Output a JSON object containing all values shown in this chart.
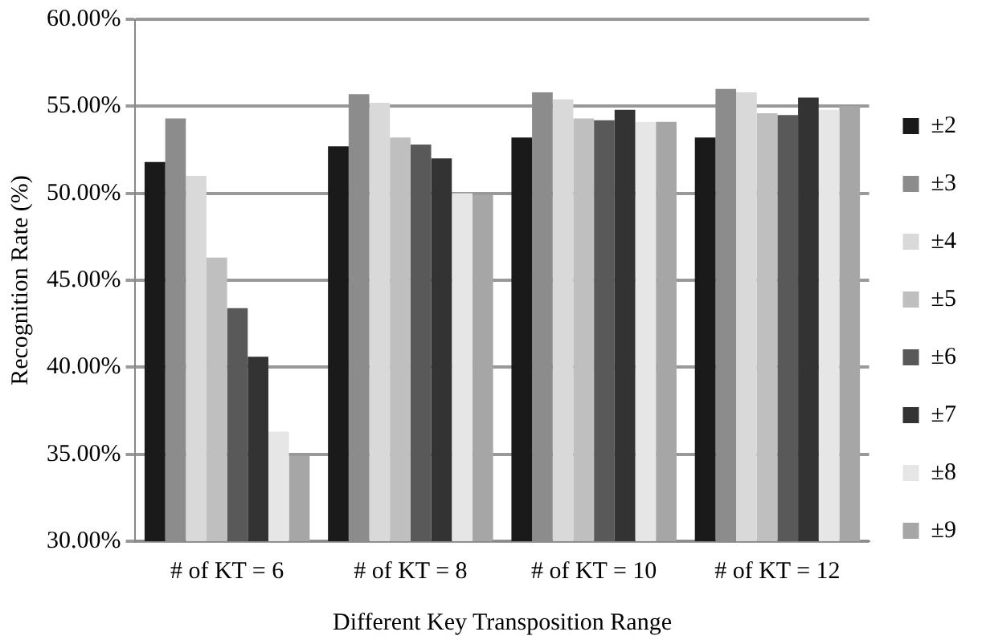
{
  "chart_data": {
    "type": "bar",
    "xlabel": "Different Key Transposition Range",
    "ylabel": "Recognition Rate (%)",
    "categories": [
      "# of KT = 6",
      "# of KT = 8",
      "# of KT = 10",
      "# of KT = 12"
    ],
    "series": [
      {
        "name": "±2",
        "color": "#1a1a1a",
        "values": [
          51.8,
          52.7,
          53.2,
          53.2
        ]
      },
      {
        "name": "±3",
        "color": "#8c8c8c",
        "values": [
          54.3,
          55.7,
          55.8,
          56.0
        ]
      },
      {
        "name": "±4",
        "color": "#d9d9d9",
        "values": [
          51.0,
          55.2,
          55.4,
          55.8
        ]
      },
      {
        "name": "±5",
        "color": "#bfbfbf",
        "values": [
          46.3,
          53.2,
          54.3,
          54.6
        ]
      },
      {
        "name": "±6",
        "color": "#595959",
        "values": [
          43.4,
          52.8,
          54.2,
          54.5
        ]
      },
      {
        "name": "±7",
        "color": "#333333",
        "values": [
          40.6,
          52.0,
          54.8,
          55.5
        ]
      },
      {
        "name": "±8",
        "color": "#e6e6e6",
        "values": [
          36.3,
          50.0,
          54.1,
          54.8
        ]
      },
      {
        "name": "±9",
        "color": "#a6a6a6",
        "values": [
          34.9,
          49.9,
          54.1,
          55.0
        ]
      }
    ],
    "ylim": [
      30,
      60
    ],
    "yticks": [
      {
        "value": 30,
        "label": "30.00%"
      },
      {
        "value": 35,
        "label": "35.00%"
      },
      {
        "value": 40,
        "label": "40.00%"
      },
      {
        "value": 45,
        "label": "45.00%"
      },
      {
        "value": 50,
        "label": "50.00%"
      },
      {
        "value": 55,
        "label": "55.00%"
      },
      {
        "value": 60,
        "label": "60.00%"
      }
    ],
    "grid": "y",
    "legend": "right"
  }
}
